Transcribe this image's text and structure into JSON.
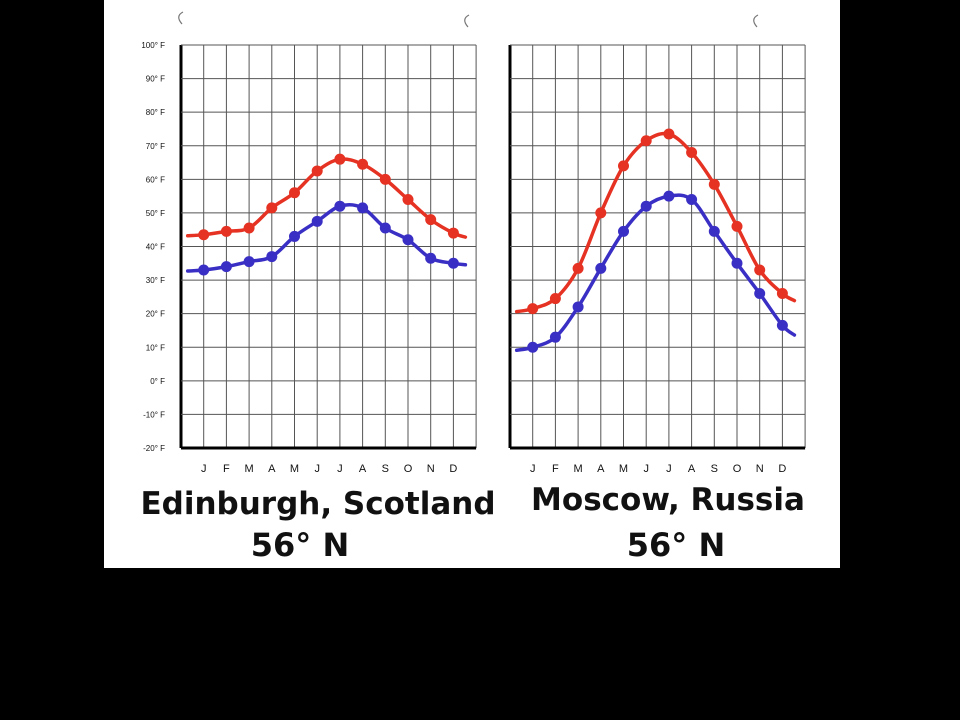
{
  "y_tick_labels": [
    "100° F",
    "90° F",
    "80° F",
    "70° F",
    "60° F",
    "50° F",
    "40° F",
    "30° F",
    "20° F",
    "10° F",
    "0° F",
    "-10° F",
    "-20° F"
  ],
  "chart_data": [
    {
      "type": "line",
      "title_line1": "Edinburgh, Scotland",
      "title_line2": "56° N",
      "categories": [
        "J",
        "F",
        "M",
        "A",
        "M",
        "J",
        "J",
        "A",
        "S",
        "O",
        "N",
        "D"
      ],
      "ylim": [
        -20,
        100
      ],
      "y_unit": "° F",
      "grid": true,
      "series": [
        {
          "color": "#e53222",
          "values": [
            43.5,
            44.5,
            45.5,
            51.5,
            56,
            62.5,
            66,
            64.5,
            60,
            54,
            48,
            44
          ]
        },
        {
          "color": "#3a2fc4",
          "values": [
            33,
            34,
            35.5,
            37,
            43,
            47.5,
            52,
            51.5,
            45.5,
            42,
            36.5,
            35
          ]
        }
      ]
    },
    {
      "type": "line",
      "title_line1": "Moscow, Russia",
      "title_line2": "56° N",
      "categories": [
        "J",
        "F",
        "M",
        "A",
        "M",
        "J",
        "J",
        "A",
        "S",
        "O",
        "N",
        "D"
      ],
      "ylim": [
        -20,
        100
      ],
      "y_unit": "° F",
      "grid": true,
      "series": [
        {
          "color": "#e53222",
          "values": [
            21.5,
            24.5,
            33.5,
            50,
            64,
            71.5,
            73.5,
            68,
            58.5,
            46,
            33,
            26
          ]
        },
        {
          "color": "#3a2fc4",
          "values": [
            10,
            13,
            22,
            33.5,
            44.5,
            52,
            55,
            54,
            44.5,
            35,
            26,
            16.5
          ]
        }
      ]
    }
  ]
}
